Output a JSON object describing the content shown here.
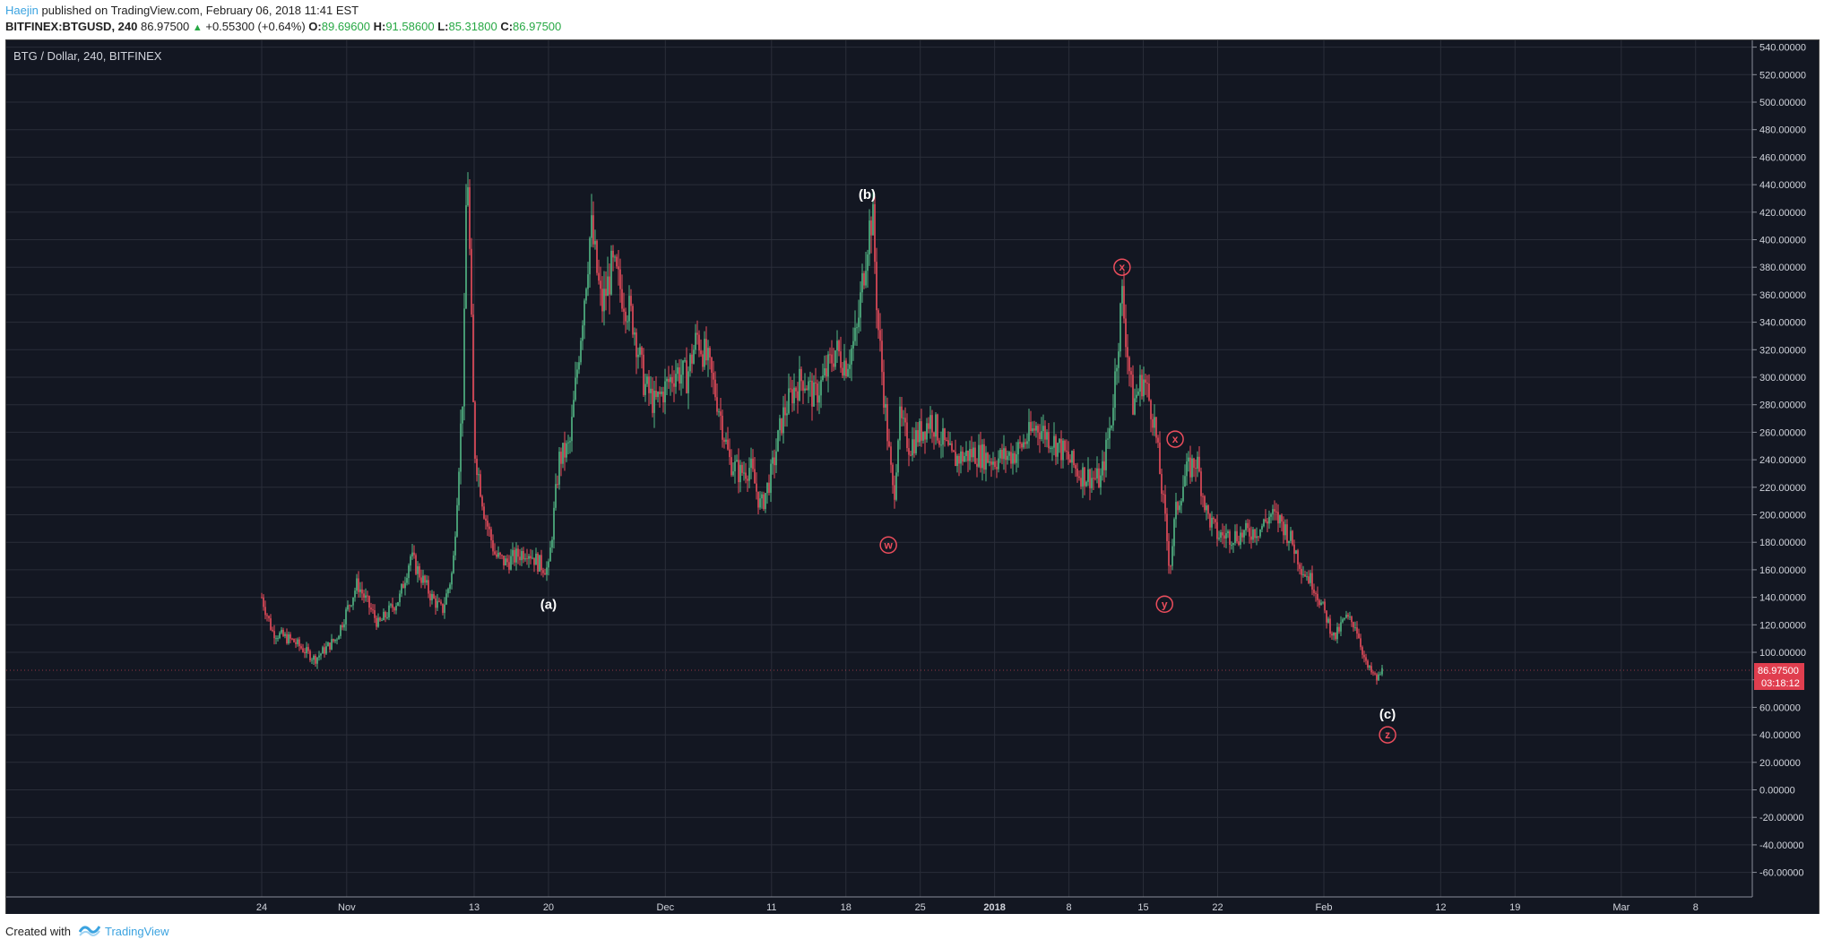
{
  "header": {
    "author": "Haejin",
    "published_text": "published on TradingView.com, February 06, 2018 11:41 EST",
    "symbol": "BITFINEX:BTGUSD, 240",
    "last": "86.97500",
    "change": "+0.55300 (+0.64%)",
    "open_label": "O:",
    "open": "89.69600",
    "high_label": "H:",
    "high": "91.58600",
    "low_label": "L:",
    "low": "85.31800",
    "close_label": "C:",
    "close": "86.97500"
  },
  "chart_title": "BTG / Dollar, 240, BITFINEX",
  "footer": {
    "created": "Created with",
    "brand": "TradingView"
  },
  "colors": {
    "up": "#53b987",
    "down": "#eb4d5c",
    "bg": "#131722",
    "grid": "#2a2e39",
    "accent": "#3ba3e0"
  },
  "chart_data": {
    "type": "candlestick",
    "title": "BTG / Dollar, 240, BITFINEX",
    "ylim": [
      -70,
      550
    ],
    "y_ticks": [
      "540.00000",
      "520.00000",
      "500.00000",
      "480.00000",
      "460.00000",
      "440.00000",
      "420.00000",
      "400.00000",
      "380.00000",
      "360.00000",
      "340.00000",
      "320.00000",
      "300.00000",
      "280.00000",
      "260.00000",
      "240.00000",
      "220.00000",
      "200.00000",
      "180.00000",
      "160.00000",
      "140.00000",
      "120.00000",
      "100.00000",
      "80.00000",
      "60.00000",
      "40.00000",
      "20.00000",
      "0.00000",
      "-20.00000",
      "-40.00000",
      "-60.00000"
    ],
    "x_ticks": [
      {
        "label": "24",
        "date": "2017-10-24"
      },
      {
        "label": "Nov",
        "date": "2017-11-01"
      },
      {
        "label": "13",
        "date": "2017-11-13"
      },
      {
        "label": "20",
        "date": "2017-11-20"
      },
      {
        "label": "Dec",
        "date": "2017-12-01"
      },
      {
        "label": "11",
        "date": "2017-12-11"
      },
      {
        "label": "18",
        "date": "2017-12-18"
      },
      {
        "label": "25",
        "date": "2017-12-25"
      },
      {
        "label": "2018",
        "date": "2018-01-01"
      },
      {
        "label": "8",
        "date": "2018-01-08"
      },
      {
        "label": "15",
        "date": "2018-01-15"
      },
      {
        "label": "22",
        "date": "2018-01-22"
      },
      {
        "label": "Feb",
        "date": "2018-02-01"
      },
      {
        "label": "12",
        "date": "2018-02-12"
      },
      {
        "label": "19",
        "date": "2018-02-19"
      },
      {
        "label": "Mar",
        "date": "2018-03-01"
      },
      {
        "label": "8",
        "date": "2018-03-08"
      }
    ],
    "price_path": [
      [
        "2017-10-24",
        140
      ],
      [
        "2017-10-25",
        115
      ],
      [
        "2017-10-27",
        108
      ],
      [
        "2017-10-29",
        95
      ],
      [
        "2017-10-31",
        110
      ],
      [
        "2017-11-02",
        150
      ],
      [
        "2017-11-04",
        120
      ],
      [
        "2017-11-06",
        140
      ],
      [
        "2017-11-07",
        170
      ],
      [
        "2017-11-09",
        140
      ],
      [
        "2017-11-10",
        130
      ],
      [
        "2017-11-11",
        160
      ],
      [
        "2017-11-12",
        300
      ],
      [
        "2017-11-12T08",
        470
      ],
      [
        "2017-11-13",
        250
      ],
      [
        "2017-11-14",
        200
      ],
      [
        "2017-11-15",
        170
      ],
      [
        "2017-11-16",
        165
      ],
      [
        "2017-11-17",
        170
      ],
      [
        "2017-11-18",
        175
      ],
      [
        "2017-11-19",
        165
      ],
      [
        "2017-11-20",
        160
      ],
      [
        "2017-11-21",
        240
      ],
      [
        "2017-11-22",
        250
      ],
      [
        "2017-11-24",
        410
      ],
      [
        "2017-11-25",
        350
      ],
      [
        "2017-11-26",
        380
      ],
      [
        "2017-11-27",
        360
      ],
      [
        "2017-11-28",
        340
      ],
      [
        "2017-11-29",
        295
      ],
      [
        "2017-11-30",
        280
      ],
      [
        "2017-12-02",
        305
      ],
      [
        "2017-12-03",
        300
      ],
      [
        "2017-12-04",
        330
      ],
      [
        "2017-12-05",
        310
      ],
      [
        "2017-12-06",
        280
      ],
      [
        "2017-12-07",
        240
      ],
      [
        "2017-12-08",
        230
      ],
      [
        "2017-12-09",
        235
      ],
      [
        "2017-12-10",
        205
      ],
      [
        "2017-12-11",
        230
      ],
      [
        "2017-12-12",
        270
      ],
      [
        "2017-12-13",
        290
      ],
      [
        "2017-12-14",
        300
      ],
      [
        "2017-12-15",
        285
      ],
      [
        "2017-12-16",
        300
      ],
      [
        "2017-12-17",
        320
      ],
      [
        "2017-12-18",
        310
      ],
      [
        "2017-12-19",
        330
      ],
      [
        "2017-12-20",
        400
      ],
      [
        "2017-12-20T12",
        420
      ],
      [
        "2017-12-21",
        340
      ],
      [
        "2017-12-22",
        250
      ],
      [
        "2017-12-22T12",
        210
      ],
      [
        "2017-12-23",
        270
      ],
      [
        "2017-12-24",
        250
      ],
      [
        "2017-12-26",
        270
      ],
      [
        "2017-12-28",
        240
      ],
      [
        "2017-12-30",
        245
      ],
      [
        "2018-01-01",
        240
      ],
      [
        "2018-01-03",
        245
      ],
      [
        "2018-01-05",
        265
      ],
      [
        "2018-01-07",
        250
      ],
      [
        "2018-01-09",
        230
      ],
      [
        "2018-01-11",
        225
      ],
      [
        "2018-01-12",
        270
      ],
      [
        "2018-01-13",
        360
      ],
      [
        "2018-01-14",
        280
      ],
      [
        "2018-01-15",
        300
      ],
      [
        "2018-01-16",
        270
      ],
      [
        "2018-01-17",
        200
      ],
      [
        "2018-01-17T12",
        160
      ],
      [
        "2018-01-18",
        200
      ],
      [
        "2018-01-19",
        230
      ],
      [
        "2018-01-20",
        240
      ],
      [
        "2018-01-21",
        200
      ],
      [
        "2018-01-22",
        185
      ],
      [
        "2018-01-24",
        185
      ],
      [
        "2018-01-26",
        190
      ],
      [
        "2018-01-27",
        200
      ],
      [
        "2018-01-28",
        195
      ],
      [
        "2018-01-29",
        180
      ],
      [
        "2018-01-30",
        160
      ],
      [
        "2018-01-31",
        150
      ],
      [
        "2018-02-01",
        130
      ],
      [
        "2018-02-02",
        110
      ],
      [
        "2018-02-03",
        125
      ],
      [
        "2018-02-04",
        120
      ],
      [
        "2018-02-05",
        90
      ],
      [
        "2018-02-06",
        80
      ],
      [
        "2018-02-06T12",
        87
      ]
    ],
    "last_price": "86.97500",
    "countdown": "03:18:12",
    "annotations": [
      {
        "label": "(a)",
        "date": "2017-11-20",
        "price": 135,
        "style": "plain"
      },
      {
        "label": "(b)",
        "date": "2017-12-20",
        "price": 433,
        "style": "plain"
      },
      {
        "label": "(c)",
        "date": "2018-02-07",
        "price": 55,
        "style": "plain"
      },
      {
        "label": "w",
        "date": "2017-12-22",
        "price": 178,
        "style": "circle"
      },
      {
        "label": "x",
        "date": "2018-01-13",
        "price": 380,
        "style": "circle"
      },
      {
        "label": "y",
        "date": "2018-01-17",
        "price": 135,
        "style": "circle"
      },
      {
        "label": "x",
        "date": "2018-01-18",
        "price": 255,
        "style": "circle"
      },
      {
        "label": "z",
        "date": "2018-02-07",
        "price": 40,
        "style": "circle"
      }
    ]
  }
}
